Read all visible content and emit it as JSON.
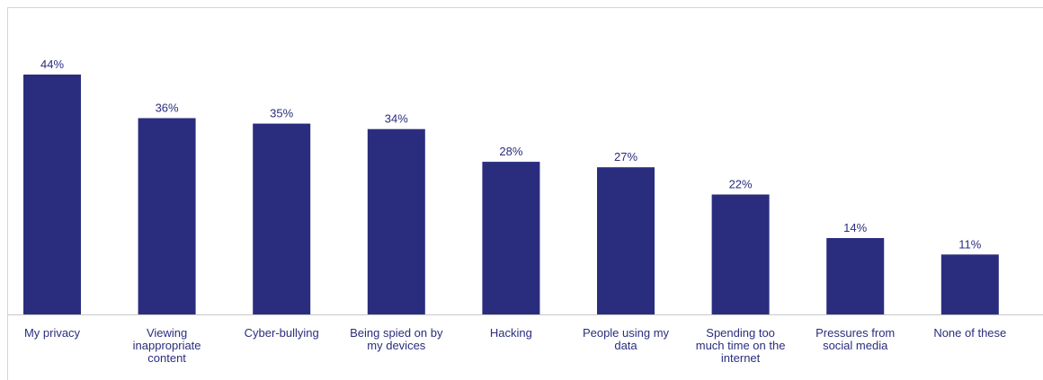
{
  "chart_data": {
    "type": "bar",
    "title": "",
    "xlabel": "",
    "ylabel": "",
    "ylim": [
      0,
      44
    ],
    "bar_color": "#2a2d7e",
    "categories": [
      "My privacy",
      "Viewing inappropriate content",
      "Cyber-bullying",
      "Being spied on by my devices",
      "Hacking",
      "People using my data",
      "Spending too much time on the internet",
      "Pressures from social media",
      "None of these"
    ],
    "category_lines": [
      [
        "My privacy"
      ],
      [
        "Viewing",
        "inappropriate",
        "content"
      ],
      [
        "Cyber-bullying"
      ],
      [
        "Being spied on by",
        "my devices"
      ],
      [
        "Hacking"
      ],
      [
        "People using my",
        "data"
      ],
      [
        "Spending too",
        "much time on the",
        "internet"
      ],
      [
        "Pressures from",
        "social media"
      ],
      [
        "None of these"
      ]
    ],
    "values": [
      44,
      36,
      35,
      34,
      28,
      27,
      22,
      14,
      11
    ],
    "value_labels": [
      "44%",
      "36%",
      "35%",
      "34%",
      "28%",
      "27%",
      "22%",
      "14%",
      "11%"
    ]
  }
}
